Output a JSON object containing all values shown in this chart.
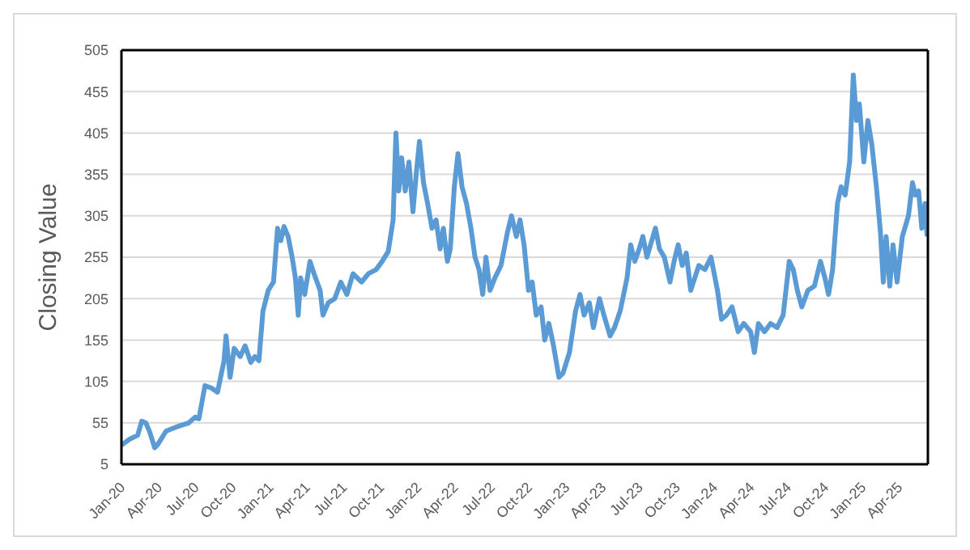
{
  "chart_data": {
    "type": "line",
    "ylabel": "Closing Value",
    "xlim": [
      "2020-01-01",
      "2025-06-12"
    ],
    "xticks": [
      {
        "value": "2020-01-01",
        "label": "Jan-20"
      },
      {
        "value": "2020-04-01",
        "label": "Apr-20"
      },
      {
        "value": "2020-07-01",
        "label": "Jul-20"
      },
      {
        "value": "2020-10-01",
        "label": "Oct-20"
      },
      {
        "value": "2021-01-01",
        "label": "Jan-21"
      },
      {
        "value": "2021-04-01",
        "label": "Apr-21"
      },
      {
        "value": "2021-07-01",
        "label": "Jul-21"
      },
      {
        "value": "2021-10-01",
        "label": "Oct-21"
      },
      {
        "value": "2022-01-01",
        "label": "Jan-22"
      },
      {
        "value": "2022-04-01",
        "label": "Apr-22"
      },
      {
        "value": "2022-07-01",
        "label": "Jul-22"
      },
      {
        "value": "2022-10-01",
        "label": "Oct-22"
      },
      {
        "value": "2023-01-01",
        "label": "Jan-23"
      },
      {
        "value": "2023-04-01",
        "label": "Apr-23"
      },
      {
        "value": "2023-07-01",
        "label": "Jul-23"
      },
      {
        "value": "2023-10-01",
        "label": "Oct-23"
      },
      {
        "value": "2024-01-01",
        "label": "Jan-24"
      },
      {
        "value": "2024-04-01",
        "label": "Apr-24"
      },
      {
        "value": "2024-07-01",
        "label": "Jul-24"
      },
      {
        "value": "2024-10-01",
        "label": "Oct-24"
      },
      {
        "value": "2025-01-01",
        "label": "Jan-25"
      },
      {
        "value": "2025-04-01",
        "label": "Apr-25"
      }
    ],
    "ylim": [
      5,
      505
    ],
    "yticks": [
      5,
      55,
      105,
      155,
      205,
      255,
      305,
      355,
      405,
      455,
      505
    ],
    "grid": "y",
    "legend": false,
    "marker": "none",
    "line_style": "solid",
    "x": [
      "2020-01-01",
      "2020-01-20",
      "2020-02-10",
      "2020-02-20",
      "2020-03-01",
      "2020-03-10",
      "2020-03-23",
      "2020-04-01",
      "2020-04-20",
      "2020-05-15",
      "2020-06-15",
      "2020-07-01",
      "2020-07-10",
      "2020-07-25",
      "2020-08-10",
      "2020-08-25",
      "2020-09-10",
      "2020-09-15",
      "2020-09-25",
      "2020-10-05",
      "2020-10-20",
      "2020-11-01",
      "2020-11-15",
      "2020-11-25",
      "2020-12-05",
      "2020-12-15",
      "2020-12-28",
      "2021-01-10",
      "2021-01-20",
      "2021-01-28",
      "2021-02-05",
      "2021-02-15",
      "2021-02-25",
      "2021-03-05",
      "2021-03-12",
      "2021-03-18",
      "2021-03-28",
      "2021-04-10",
      "2021-04-20",
      "2021-05-05",
      "2021-05-12",
      "2021-05-25",
      "2021-06-10",
      "2021-06-25",
      "2021-07-10",
      "2021-07-25",
      "2021-08-15",
      "2021-09-01",
      "2021-09-20",
      "2021-10-05",
      "2021-10-20",
      "2021-11-01",
      "2021-11-08",
      "2021-11-15",
      "2021-11-22",
      "2021-12-01",
      "2021-12-10",
      "2021-12-20",
      "2021-12-28",
      "2022-01-05",
      "2022-01-15",
      "2022-01-25",
      "2022-02-05",
      "2022-02-15",
      "2022-02-25",
      "2022-03-05",
      "2022-03-15",
      "2022-03-22",
      "2022-04-01",
      "2022-04-10",
      "2022-04-20",
      "2022-05-01",
      "2022-05-12",
      "2022-05-22",
      "2022-06-01",
      "2022-06-10",
      "2022-06-18",
      "2022-06-28",
      "2022-07-10",
      "2022-07-25",
      "2022-08-10",
      "2022-08-20",
      "2022-09-01",
      "2022-09-10",
      "2022-09-20",
      "2022-10-01",
      "2022-10-10",
      "2022-10-20",
      "2022-11-01",
      "2022-11-10",
      "2022-11-20",
      "2022-12-01",
      "2022-12-15",
      "2022-12-25",
      "2023-01-10",
      "2023-01-25",
      "2023-02-05",
      "2023-02-15",
      "2023-02-28",
      "2023-03-10",
      "2023-03-25",
      "2023-04-05",
      "2023-04-20",
      "2023-05-01",
      "2023-05-15",
      "2023-06-01",
      "2023-06-10",
      "2023-06-20",
      "2023-07-01",
      "2023-07-10",
      "2023-07-20",
      "2023-08-01",
      "2023-08-10",
      "2023-08-20",
      "2023-09-01",
      "2023-09-15",
      "2023-09-25",
      "2023-10-05",
      "2023-10-15",
      "2023-10-25",
      "2023-11-05",
      "2023-11-15",
      "2023-11-25",
      "2023-12-10",
      "2023-12-25",
      "2024-01-10",
      "2024-01-20",
      "2024-02-01",
      "2024-02-15",
      "2024-03-01",
      "2024-03-15",
      "2024-04-01",
      "2024-04-10",
      "2024-04-20",
      "2024-05-05",
      "2024-05-20",
      "2024-06-05",
      "2024-06-20",
      "2024-07-05",
      "2024-07-15",
      "2024-07-25",
      "2024-08-05",
      "2024-08-20",
      "2024-09-05",
      "2024-09-20",
      "2024-10-01",
      "2024-10-10",
      "2024-10-20",
      "2024-11-01",
      "2024-11-10",
      "2024-11-20",
      "2024-12-01",
      "2024-12-10",
      "2024-12-18",
      "2024-12-25",
      "2025-01-05",
      "2025-01-15",
      "2025-01-25",
      "2025-02-05",
      "2025-02-15",
      "2025-02-22",
      "2025-03-01",
      "2025-03-10",
      "2025-03-18",
      "2025-03-28",
      "2025-04-10",
      "2025-04-25",
      "2025-05-05",
      "2025-05-12",
      "2025-05-20",
      "2025-05-28",
      "2025-06-05",
      "2025-06-10"
    ],
    "series": [
      {
        "color": "#5b9bd5",
        "values": [
          28,
          35,
          40,
          57,
          55,
          45,
          25,
          30,
          45,
          50,
          55,
          62,
          60,
          100,
          97,
          92,
          130,
          160,
          110,
          145,
          135,
          148,
          128,
          135,
          130,
          190,
          215,
          225,
          290,
          275,
          292,
          280,
          255,
          230,
          185,
          230,
          210,
          250,
          235,
          215,
          185,
          200,
          205,
          225,
          210,
          235,
          225,
          235,
          240,
          250,
          262,
          300,
          405,
          335,
          375,
          335,
          370,
          310,
          355,
          395,
          345,
          320,
          290,
          300,
          265,
          290,
          250,
          265,
          340,
          380,
          340,
          320,
          290,
          255,
          240,
          210,
          255,
          215,
          230,
          245,
          285,
          305,
          280,
          300,
          270,
          215,
          225,
          185,
          195,
          155,
          175,
          150,
          110,
          115,
          140,
          190,
          210,
          185,
          200,
          170,
          205,
          185,
          160,
          170,
          190,
          230,
          270,
          250,
          265,
          280,
          255,
          275,
          290,
          265,
          255,
          225,
          250,
          270,
          245,
          260,
          215,
          230,
          245,
          240,
          255,
          215,
          180,
          185,
          195,
          165,
          175,
          165,
          140,
          175,
          165,
          175,
          170,
          185,
          250,
          240,
          215,
          195,
          215,
          220,
          250,
          230,
          210,
          240,
          320,
          340,
          330,
          370,
          475,
          420,
          440,
          370,
          420,
          390,
          340,
          285,
          225,
          280,
          220,
          270,
          225,
          280,
          305,
          345,
          330,
          335,
          290,
          320,
          280
        ]
      }
    ]
  }
}
